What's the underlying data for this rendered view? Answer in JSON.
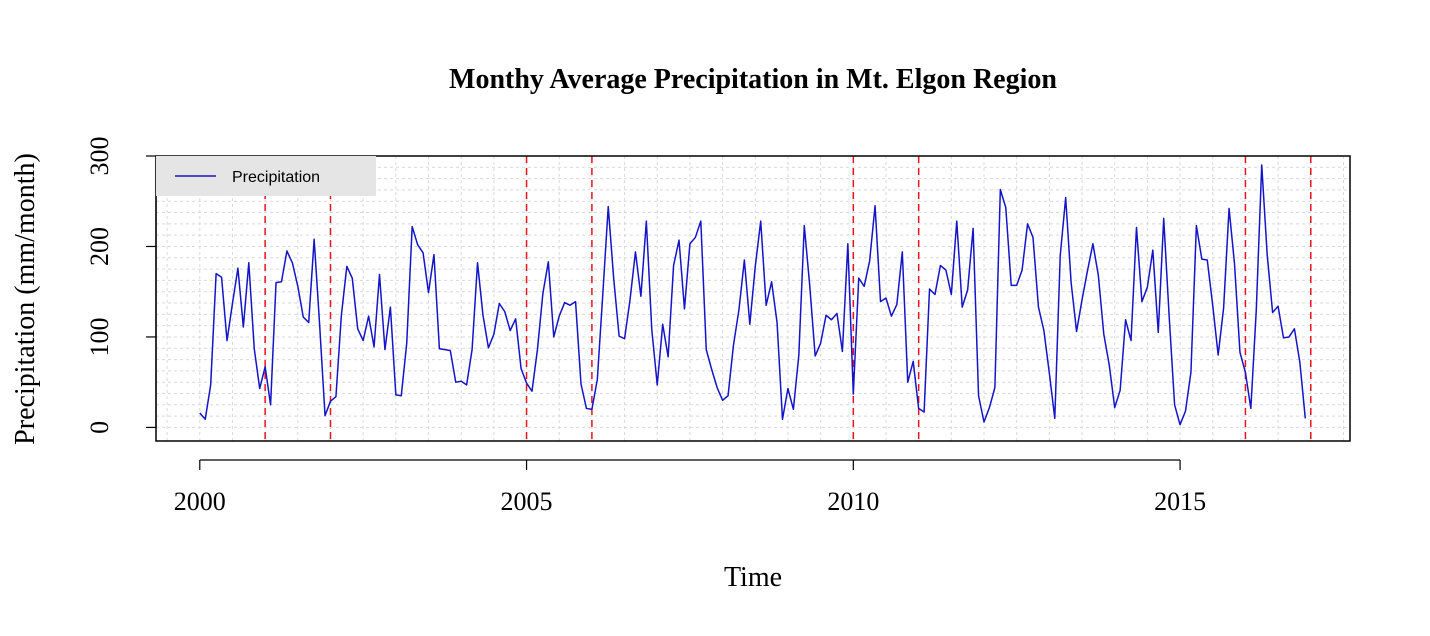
{
  "chart_data": {
    "type": "line",
    "title": "Monthy Average Precipitation in Mt. Elgon Region",
    "xlabel": "Time",
    "ylabel": "Precipitation (mm/month)",
    "xlim": [
      1999.33,
      2017.6
    ],
    "ylim": [
      -15,
      300
    ],
    "x_ticks": [
      2000,
      2005,
      2010,
      2015
    ],
    "x_tick_labels": [
      "2000",
      "2005",
      "2010",
      "2015"
    ],
    "y_ticks": [
      0,
      100,
      200,
      300
    ],
    "y_tick_labels": [
      "0",
      "100",
      "200",
      "300"
    ],
    "grid": true,
    "legend": {
      "position": "top-left",
      "entries": [
        "Precipitation"
      ]
    },
    "reference_lines": {
      "style": "dashed",
      "color": "#e8141c",
      "x": [
        2001,
        2002,
        2005,
        2006,
        2010,
        2011,
        2016,
        2017
      ]
    },
    "series": [
      {
        "name": "Precipitation",
        "color": "#1414c8",
        "x_start": 2000,
        "x_step": 0.08333,
        "values": [
          16,
          9,
          47,
          170,
          166,
          96,
          137,
          176,
          111,
          182,
          87,
          43,
          67,
          25,
          160,
          161,
          195,
          182,
          156,
          122,
          116,
          208,
          114,
          13,
          29,
          34,
          124,
          178,
          165,
          109,
          96,
          123,
          89,
          169,
          86,
          133,
          36,
          35,
          93,
          222,
          202,
          193,
          149,
          191,
          87,
          86,
          85,
          50,
          51,
          47,
          86,
          182,
          124,
          88,
          103,
          137,
          128,
          107,
          120,
          65,
          49,
          40,
          86,
          148,
          183,
          100,
          123,
          138,
          135,
          139,
          48,
          21,
          20,
          53,
          147,
          244,
          165,
          101,
          98,
          141,
          194,
          145,
          228,
          108,
          47,
          114,
          78,
          179,
          207,
          131,
          203,
          210,
          228,
          86,
          64,
          44,
          30,
          35,
          91,
          130,
          185,
          114,
          178,
          228,
          135,
          161,
          116,
          9,
          43,
          20,
          80,
          223,
          157,
          79,
          93,
          124,
          119,
          126,
          84,
          203,
          37,
          165,
          156,
          184,
          245,
          139,
          143,
          123,
          136,
          194,
          50,
          73,
          21,
          17,
          153,
          147,
          179,
          174,
          147,
          228,
          133,
          152,
          220,
          35,
          6,
          22,
          44,
          263,
          243,
          157,
          157,
          174,
          225,
          210,
          133,
          107,
          60,
          10,
          190,
          254,
          160,
          106,
          141,
          173,
          203,
          168,
          103,
          69,
          22,
          41,
          119,
          96,
          221,
          139,
          155,
          196,
          105,
          231,
          123,
          25,
          3,
          18,
          61,
          223,
          186,
          185,
          135,
          80,
          132,
          242,
          181,
          83,
          61,
          21,
          130,
          290,
          191,
          127,
          134,
          99,
          100,
          109,
          72,
          10
        ]
      }
    ]
  }
}
